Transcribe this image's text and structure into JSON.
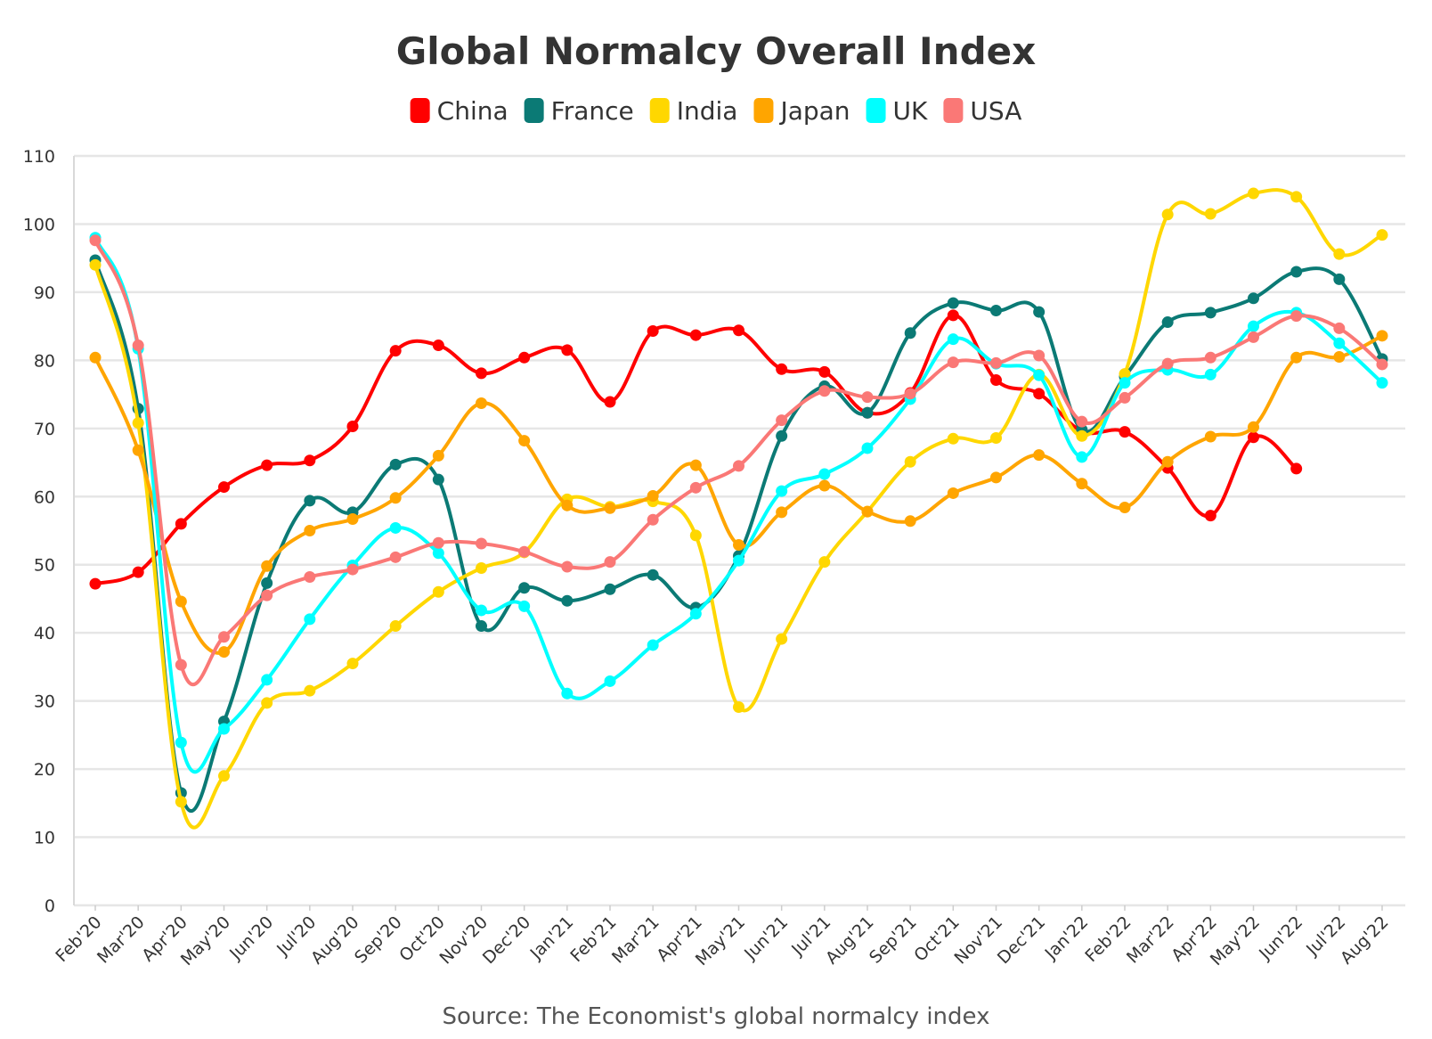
{
  "chart_data": {
    "type": "line",
    "title": "Global Normalcy Overall Index",
    "source": "Source: The Economist's global normalcy index",
    "ylim": [
      0,
      110
    ],
    "yticks": [
      0,
      10,
      20,
      30,
      40,
      50,
      60,
      70,
      80,
      90,
      100,
      110
    ],
    "grid": true,
    "legend_position": "top-center",
    "categories": [
      "Feb'20",
      "Mar'20",
      "Apr'20",
      "May'20",
      "Jun'20",
      "Jul'20",
      "Aug'20",
      "Sep'20",
      "Oct'20",
      "Nov'20",
      "Dec'20",
      "Jan'21",
      "Feb'21",
      "Mar'21",
      "Apr'21",
      "May'21",
      "Jun'21",
      "Jul'21",
      "Aug'21",
      "Sep'21",
      "Oct'21",
      "Nov'21",
      "Dec'21",
      "Jan'22",
      "Feb'22",
      "Mar'22",
      "Apr'22",
      "May'22",
      "Jun'22",
      "Jul'22",
      "Aug'22"
    ],
    "series": [
      {
        "name": "China",
        "color": "#ff0000",
        "values": [
          47.2,
          48.9,
          56,
          61.4,
          64.6,
          65.3,
          70.3,
          81.4,
          82.2,
          78.1,
          80.4,
          81.5,
          73.9,
          84.3,
          83.7,
          84.4,
          78.7,
          78.3,
          72.3,
          75.2,
          86.6,
          77.1,
          75.1,
          69.6,
          69.5,
          64.2,
          57.2,
          68.7,
          64.1,
          null,
          null
        ]
      },
      {
        "name": "France",
        "color": "#0b7a75",
        "values": [
          94.7,
          72.9,
          16.5,
          27,
          47.3,
          59.4,
          57.7,
          64.7,
          62.5,
          41,
          46.6,
          44.7,
          46.4,
          48.5,
          43.7,
          51.3,
          68.9,
          76.2,
          72.3,
          84,
          88.4,
          87.3,
          87.1,
          69.8,
          77.6,
          85.6,
          87,
          89.1,
          93,
          91.9,
          80.2
        ]
      },
      {
        "name": "India",
        "color": "#ffd700",
        "values": [
          94,
          70.8,
          15.2,
          19,
          29.7,
          31.5,
          35.5,
          41,
          46,
          49.5,
          51.8,
          59.6,
          58.5,
          59.3,
          54.3,
          29.1,
          39.1,
          50.4,
          57.8,
          65.1,
          68.5,
          68.6,
          77.9,
          68.9,
          78,
          101.4,
          101.5,
          104.5,
          104,
          95.6,
          98.4
        ]
      },
      {
        "name": "Japan",
        "color": "#ffa500",
        "values": [
          80.4,
          66.8,
          44.6,
          37.2,
          49.8,
          55,
          56.7,
          59.8,
          66,
          73.7,
          68.2,
          58.7,
          58.3,
          60.1,
          64.6,
          52.9,
          57.7,
          61.6,
          57.8,
          56.4,
          60.5,
          62.8,
          66.1,
          61.9,
          58.4,
          65.1,
          68.8,
          70.2,
          80.4,
          80.5,
          83.6
        ]
      },
      {
        "name": "UK",
        "color": "#00ffff",
        "values": [
          98,
          81.7,
          23.9,
          25.9,
          33.1,
          42,
          49.9,
          55.4,
          51.7,
          43.3,
          43.9,
          31.1,
          32.9,
          38.2,
          42.8,
          50.6,
          60.8,
          63.3,
          67.1,
          74.3,
          83.1,
          79.5,
          77.8,
          65.8,
          76.7,
          78.6,
          77.9,
          85,
          87,
          82.5,
          76.7
        ]
      },
      {
        "name": "USA",
        "color": "#fa7876",
        "values": [
          97.6,
          82.2,
          35.3,
          39.4,
          45.5,
          48.2,
          49.3,
          51.1,
          53.2,
          53.1,
          51.9,
          49.7,
          50.4,
          56.6,
          61.3,
          64.5,
          71.2,
          75.5,
          74.6,
          75.1,
          79.7,
          79.6,
          80.7,
          71,
          74.5,
          79.5,
          80.4,
          83.4,
          86.5,
          84.7,
          79.4
        ]
      }
    ]
  }
}
